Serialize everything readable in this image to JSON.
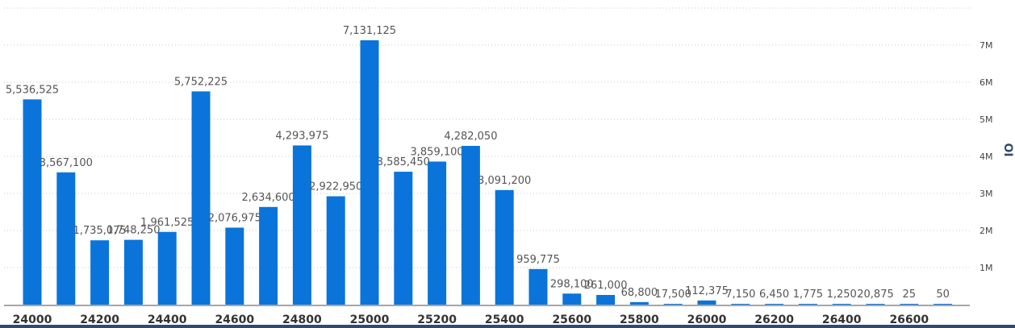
{
  "chart_data": {
    "type": "bar",
    "categories": [
      "24000",
      "24100",
      "24200",
      "24300",
      "24400",
      "24500",
      "24600",
      "24700",
      "24800",
      "24900",
      "25000",
      "25100",
      "25200",
      "25300",
      "25400",
      "25500",
      "25600",
      "25700",
      "25800",
      "25900",
      "26000",
      "26100",
      "26200",
      "26300",
      "26400",
      "26500",
      "26600",
      "26700"
    ],
    "values": [
      5536525,
      3567100,
      1735075,
      1748250,
      1961525,
      5752225,
      2076975,
      2634600,
      4293975,
      2922950,
      7131125,
      3585450,
      3859100,
      4282050,
      3091200,
      959775,
      298100,
      261000,
      68800,
      17500,
      112375,
      7150,
      6450,
      1775,
      1250,
      20875,
      25,
      50
    ],
    "value_labels": [
      "5,536,525",
      "3,567,100",
      "1,735,075",
      "1,748,250",
      "1,961,525",
      "5,752,225",
      "2,076,975",
      "2,634,600",
      "4,293,975",
      "2,922,950",
      "7,131,125",
      "3,585,450",
      "3,859,100",
      "4,282,050",
      "3,091,200",
      "959,775",
      "298,100",
      "261,000",
      "68,800",
      "17,500",
      "112,375",
      "7,150",
      "6,450",
      "1,775",
      "1,250",
      "20,875",
      "25",
      "50"
    ],
    "x_tick_labels": [
      "24000",
      "24200",
      "24400",
      "24600",
      "24800",
      "25000",
      "25200",
      "25400",
      "25600",
      "25800",
      "26000",
      "26200",
      "26400",
      "26600"
    ],
    "y_tick_values": [
      1000000,
      2000000,
      3000000,
      4000000,
      5000000,
      6000000,
      7000000
    ],
    "y_tick_labels": [
      "1M",
      "2M",
      "3M",
      "4M",
      "5M",
      "6M",
      "7M"
    ],
    "ylabel": "OI",
    "ylim": [
      0,
      8000000
    ],
    "grid": true,
    "bar_color": "#0a74da"
  }
}
